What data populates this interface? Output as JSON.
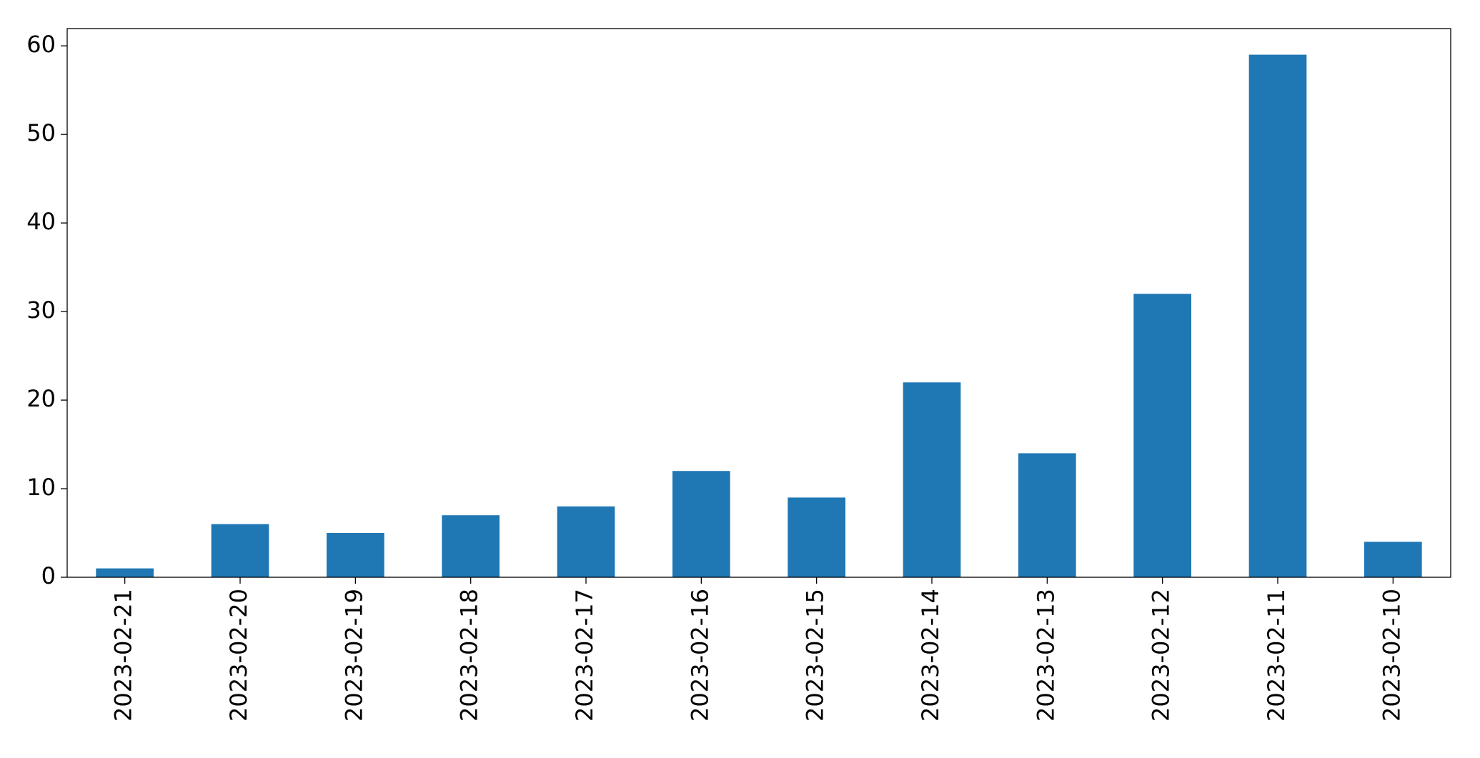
{
  "chart_data": {
    "type": "bar",
    "categories": [
      "2023-02-21",
      "2023-02-20",
      "2023-02-19",
      "2023-02-18",
      "2023-02-17",
      "2023-02-16",
      "2023-02-15",
      "2023-02-14",
      "2023-02-13",
      "2023-02-12",
      "2023-02-11",
      "2023-02-10"
    ],
    "values": [
      1,
      6,
      5,
      7,
      8,
      12,
      9,
      22,
      14,
      32,
      59,
      4
    ],
    "color": "#1f77b4",
    "ylim": [
      0,
      61.95
    ],
    "yticks": [
      0,
      10,
      20,
      30,
      40,
      50,
      60
    ],
    "grid": false
  }
}
